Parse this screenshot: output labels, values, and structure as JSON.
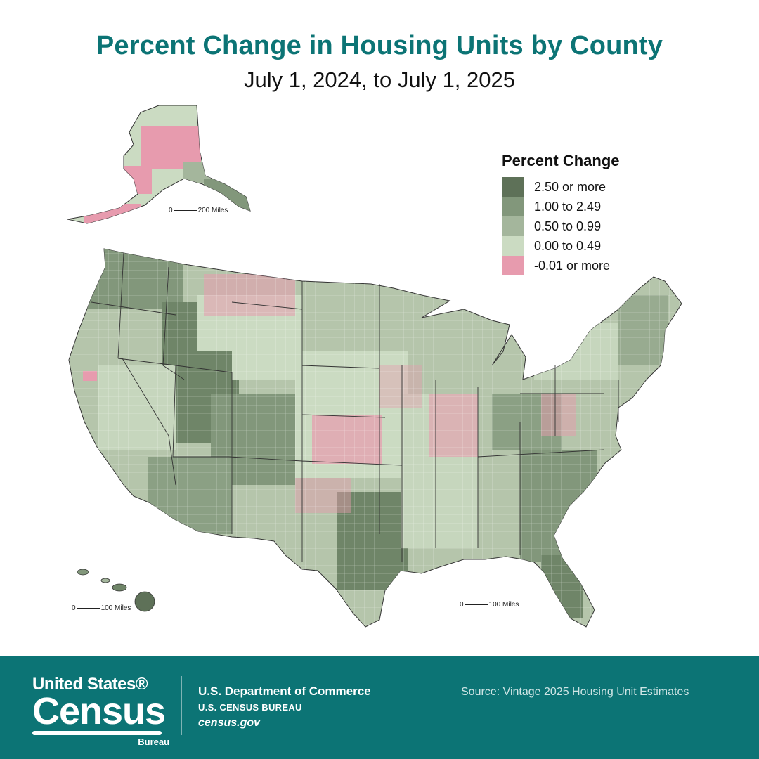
{
  "header": {
    "title": "Percent Change in Housing Units by County",
    "subtitle": "July 1, 2024, to July 1, 2025"
  },
  "legend": {
    "title": "Percent Change",
    "items": [
      {
        "label": "2.50 or more",
        "color": "#5e7158"
      },
      {
        "label": "1.00 to 2.49",
        "color": "#82977b"
      },
      {
        "label": "0.50 to 0.99",
        "color": "#a4b69c"
      },
      {
        "label": "0.00 to 0.49",
        "color": "#cbdbc2"
      },
      {
        "label": "-0.01 or more",
        "color": "#e79bae"
      }
    ]
  },
  "scales": {
    "alaska": {
      "zero": "0",
      "label": "200 Miles"
    },
    "hawaii": {
      "zero": "0",
      "label": "100 Miles"
    },
    "conus": {
      "zero": "0",
      "label": "100 Miles"
    }
  },
  "footer": {
    "logo_top": "United States®",
    "logo_main": "Census",
    "logo_bureau": "Bureau",
    "dept_line1": "U.S. Department of Commerce",
    "dept_line2": "U.S. CENSUS BUREAU",
    "dept_line3": "census.gov",
    "source": "Source: Vintage 2025 Housing Unit Estimates",
    "background_color": "#0c7475"
  }
}
